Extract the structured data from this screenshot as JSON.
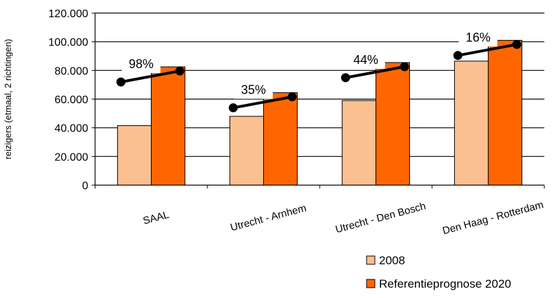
{
  "chart_data": {
    "type": "bar",
    "categories": [
      "SAAL",
      "Utrecht - Arnhem",
      "Utrecht - Den Bosch",
      "Den Haag - Rotterdam"
    ],
    "series": [
      {
        "name": "2008",
        "color": "#fac090",
        "values": [
          41500,
          48000,
          59000,
          86500
        ]
      },
      {
        "name": "Referentieprognose 2020",
        "color": "#ff6600",
        "values": [
          82500,
          64500,
          85500,
          101000
        ]
      }
    ],
    "growth_labels": [
      "98%",
      "35%",
      "44%",
      "16%"
    ],
    "growth_arrow_color": "#000000",
    "ylabel": "reizigers (etmaal, 2 richtingen)",
    "xlabel": "",
    "title": "",
    "ylim": [
      0,
      120000
    ],
    "yticks": [
      {
        "value": 0,
        "label": "0"
      },
      {
        "value": 20000,
        "label": "20.000"
      },
      {
        "value": 40000,
        "label": "40.000"
      },
      {
        "value": 60000,
        "label": "60.000"
      },
      {
        "value": 80000,
        "label": "80.000"
      },
      {
        "value": 100000,
        "label": "100.000"
      },
      {
        "value": 120000,
        "label": "120.000"
      }
    ],
    "grid": true,
    "legend_position": "bottom-right"
  }
}
